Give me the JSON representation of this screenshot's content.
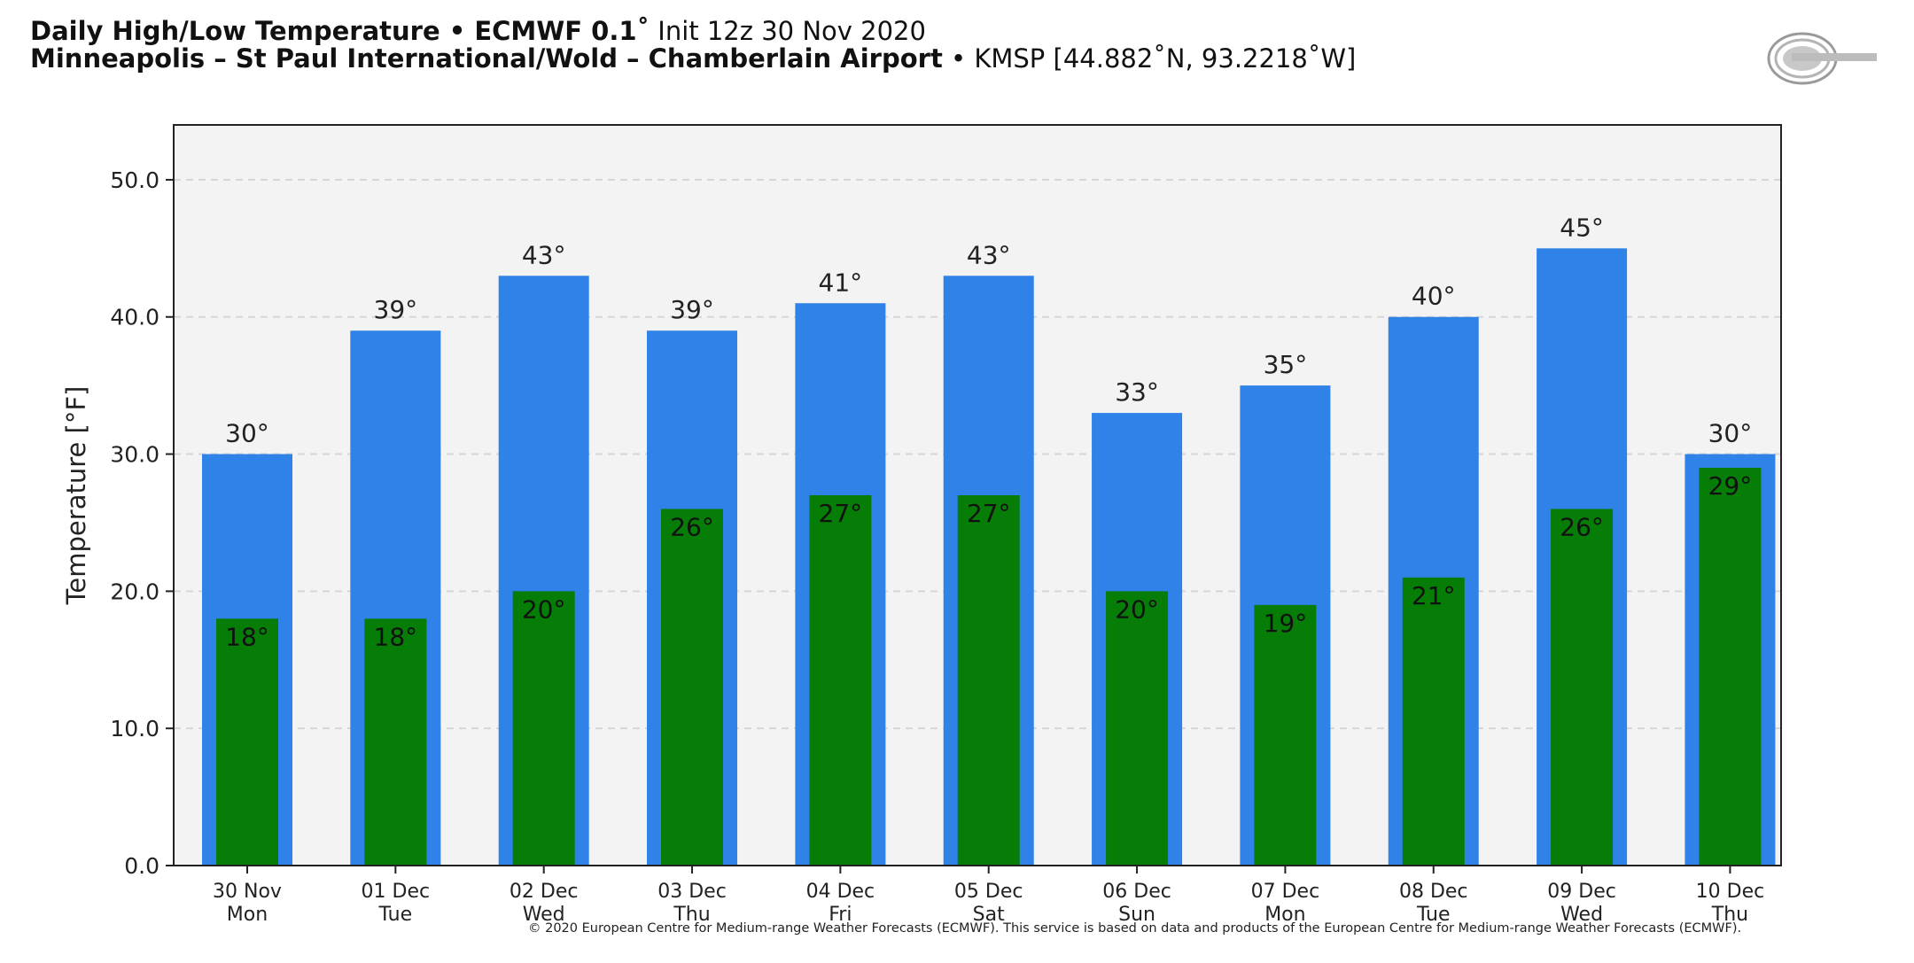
{
  "header": {
    "title_bold": "Daily High/Low Temperature • ECMWF 0.1˚",
    "title_init": " Init 12z 30 Nov 2020",
    "location_bold": "Minneapolis – St Paul International/Wold – Chamberlain Airport",
    "location_info": " • KMSP [44.882˚N, 93.2218˚W]"
  },
  "colors": {
    "high_bar": "#2f82e8",
    "low_bar": "#067d06",
    "plot_background": "#f3f3f3",
    "gridline": "#d6d6d6"
  },
  "chart_data": {
    "type": "bar",
    "ylabel": "Temperature [°F]",
    "ylim": [
      0,
      54
    ],
    "yticks": [
      0,
      10,
      20,
      30,
      40,
      50
    ],
    "ytick_labels": [
      "0.0",
      "10.0",
      "20.0",
      "30.0",
      "40.0",
      "50.0"
    ],
    "grid": "horizontal dashed",
    "categories": [
      {
        "date": "30 Nov",
        "day": "Mon"
      },
      {
        "date": "01 Dec",
        "day": "Tue"
      },
      {
        "date": "02 Dec",
        "day": "Wed"
      },
      {
        "date": "03 Dec",
        "day": "Thu"
      },
      {
        "date": "04 Dec",
        "day": "Fri"
      },
      {
        "date": "05 Dec",
        "day": "Sat"
      },
      {
        "date": "06 Dec",
        "day": "Sun"
      },
      {
        "date": "07 Dec",
        "day": "Mon"
      },
      {
        "date": "08 Dec",
        "day": "Tue"
      },
      {
        "date": "09 Dec",
        "day": "Wed"
      },
      {
        "date": "10 Dec",
        "day": "Thu"
      }
    ],
    "series": [
      {
        "values": [
          30,
          39,
          43,
          39,
          41,
          43,
          33,
          35,
          40,
          45,
          30
        ],
        "labels": [
          "30°",
          "39°",
          "43°",
          "39°",
          "41°",
          "43°",
          "33°",
          "35°",
          "40°",
          "45°",
          "30°"
        ]
      },
      {
        "values": [
          18,
          18,
          20,
          26,
          27,
          27,
          20,
          19,
          21,
          26,
          29
        ],
        "labels": [
          "18°",
          "18°",
          "20°",
          "26°",
          "27°",
          "27°",
          "20°",
          "19°",
          "21°",
          "26°",
          "29°"
        ]
      }
    ]
  },
  "footer": {
    "copyright": "© 2020 European Centre for Medium-range Weather Forecasts (ECMWF). This service is based on data and products of the European Centre for Medium-range Weather Forecasts (ECMWF)."
  },
  "logo": {
    "icon": "weatherbell-logo-icon"
  }
}
